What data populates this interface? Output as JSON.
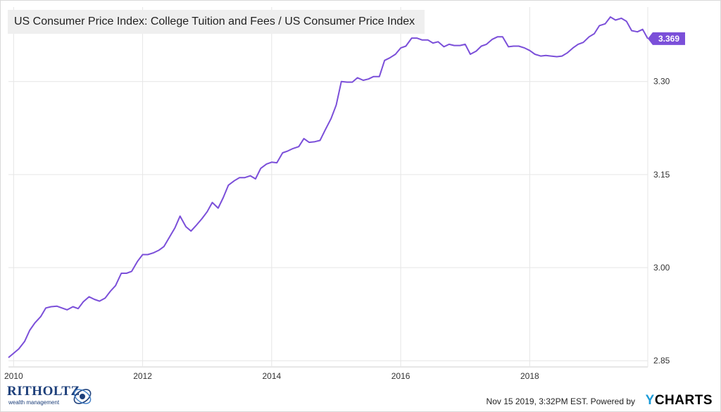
{
  "chart_data": {
    "type": "line",
    "title": "US Consumer Price Index: College Tuition and Fees / US Consumer Price Index",
    "x_ticks": [
      "2010",
      "2012",
      "2014",
      "2016",
      "2018"
    ],
    "y_ticks": [
      "2.85",
      "3.00",
      "3.15",
      "3.30"
    ],
    "ylim": [
      2.84,
      3.42
    ],
    "xlim": [
      2009.92,
      2019.83
    ],
    "last_value_label": "3.369",
    "series": [
      {
        "color": "#7b4fd9",
        "x": [
          2009.92,
          2010.0,
          2010.08,
          2010.17,
          2010.25,
          2010.33,
          2010.42,
          2010.5,
          2010.58,
          2010.67,
          2010.75,
          2010.83,
          2010.92,
          2011.0,
          2011.08,
          2011.17,
          2011.25,
          2011.33,
          2011.42,
          2011.5,
          2011.58,
          2011.67,
          2011.75,
          2011.83,
          2011.92,
          2012.0,
          2012.08,
          2012.17,
          2012.25,
          2012.33,
          2012.42,
          2012.5,
          2012.58,
          2012.67,
          2012.75,
          2012.83,
          2012.92,
          2013.0,
          2013.08,
          2013.17,
          2013.25,
          2013.33,
          2013.42,
          2013.5,
          2013.58,
          2013.67,
          2013.75,
          2013.83,
          2013.92,
          2014.0,
          2014.08,
          2014.17,
          2014.25,
          2014.33,
          2014.42,
          2014.5,
          2014.58,
          2014.67,
          2014.75,
          2014.83,
          2014.92,
          2015.0,
          2015.08,
          2015.17,
          2015.25,
          2015.33,
          2015.42,
          2015.5,
          2015.58,
          2015.67,
          2015.75,
          2015.83,
          2015.92,
          2016.0,
          2016.08,
          2016.17,
          2016.25,
          2016.33,
          2016.42,
          2016.5,
          2016.58,
          2016.67,
          2016.75,
          2016.83,
          2016.92,
          2017.0,
          2017.08,
          2017.17,
          2017.25,
          2017.33,
          2017.42,
          2017.5,
          2017.58,
          2017.67,
          2017.75,
          2017.83,
          2017.92,
          2018.0,
          2018.08,
          2018.17,
          2018.25,
          2018.33,
          2018.42,
          2018.5,
          2018.58,
          2018.67,
          2018.75,
          2018.83,
          2018.92,
          2019.0,
          2019.08,
          2019.17,
          2019.25,
          2019.33,
          2019.42,
          2019.5,
          2019.58,
          2019.67,
          2019.75,
          2019.83
        ],
        "values": [
          2.855,
          2.862,
          2.869,
          2.881,
          2.899,
          2.911,
          2.921,
          2.935,
          2.937,
          2.938,
          2.935,
          2.932,
          2.937,
          2.934,
          2.945,
          2.953,
          2.949,
          2.946,
          2.951,
          2.962,
          2.971,
          2.991,
          2.991,
          2.994,
          3.01,
          3.021,
          3.021,
          3.024,
          3.028,
          3.034,
          3.05,
          3.064,
          3.083,
          3.066,
          3.059,
          3.068,
          3.079,
          3.09,
          3.105,
          3.096,
          3.113,
          3.133,
          3.14,
          3.145,
          3.145,
          3.148,
          3.143,
          3.16,
          3.167,
          3.17,
          3.169,
          3.185,
          3.188,
          3.192,
          3.195,
          3.208,
          3.202,
          3.203,
          3.205,
          3.222,
          3.24,
          3.262,
          3.3,
          3.299,
          3.299,
          3.306,
          3.302,
          3.304,
          3.308,
          3.308,
          3.334,
          3.338,
          3.344,
          3.354,
          3.357,
          3.37,
          3.37,
          3.367,
          3.367,
          3.362,
          3.364,
          3.356,
          3.36,
          3.358,
          3.358,
          3.36,
          3.344,
          3.349,
          3.357,
          3.36,
          3.368,
          3.372,
          3.372,
          3.356,
          3.357,
          3.357,
          3.354,
          3.35,
          3.344,
          3.341,
          3.342,
          3.341,
          3.34,
          3.341,
          3.346,
          3.354,
          3.36,
          3.363,
          3.372,
          3.377,
          3.39,
          3.393,
          3.404,
          3.399,
          3.402,
          3.397,
          3.382,
          3.38,
          3.384,
          3.369
        ]
      }
    ]
  },
  "footer": {
    "timestamp": "Nov 15 2019, 3:32PM EST.",
    "powered_by": "Powered by",
    "brand_y": "Y",
    "brand_rest": "CHARTS"
  },
  "logo": {
    "name": "RITHOLTZ",
    "tagline": "wealth management"
  }
}
